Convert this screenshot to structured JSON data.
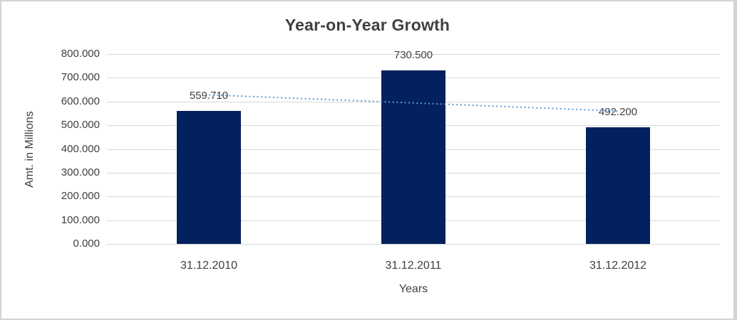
{
  "chart_data": {
    "type": "bar",
    "title": "Year-on-Year Growth",
    "xlabel": "Years",
    "ylabel": "Amt. in Millions",
    "categories": [
      "31.12.2010",
      "31.12.2011",
      "31.12.2012"
    ],
    "values": [
      559.71,
      730.5,
      492.2
    ],
    "value_labels": [
      "559.710",
      "730.500",
      "492.200"
    ],
    "ylim": [
      0,
      800
    ],
    "ytick_step": 100,
    "ytick_labels": [
      "800.000",
      "700.000",
      "600.000",
      "500.000",
      "400.000",
      "300.000",
      "200.000",
      "100.000",
      "0.000"
    ],
    "grid": true,
    "legend": "none",
    "trendline": {
      "type": "linear",
      "style": "dotted",
      "start_value": 628,
      "end_value": 560
    },
    "colors": {
      "bar": "#03215f",
      "trend": "#5b9bd5",
      "gridline": "#d9d9d9",
      "text": "#3f3f3f",
      "title": "#404040",
      "frame": "#d3d3d3",
      "background": "#ffffff"
    }
  }
}
